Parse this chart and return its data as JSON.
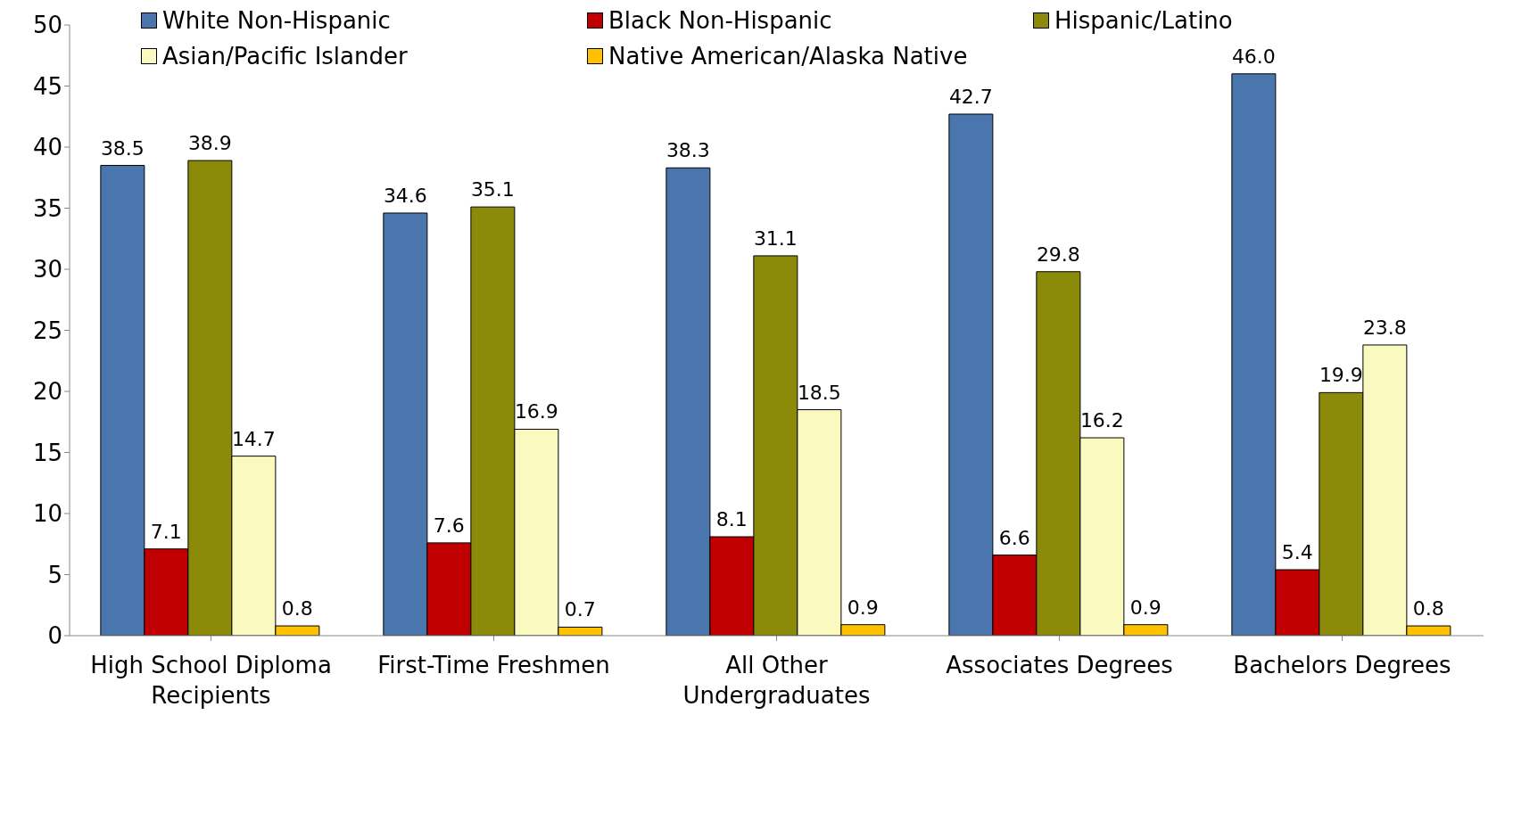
{
  "chart_data": {
    "type": "bar",
    "categories": [
      "High School Diploma Recipients",
      "First-Time Freshmen",
      "All Other Undergraduates",
      "Associates Degrees",
      "Bachelors Degrees"
    ],
    "series": [
      {
        "name": "White Non-Hispanic",
        "color": "#4a76ad",
        "values": [
          38.5,
          34.6,
          38.3,
          42.7,
          46.0
        ],
        "value_labels": [
          "38.5",
          "34.6",
          "38.3",
          "42.7",
          "46.0"
        ]
      },
      {
        "name": "Black Non-Hispanic",
        "color": "#c00000",
        "values": [
          7.1,
          7.6,
          8.1,
          6.6,
          5.4
        ],
        "value_labels": [
          "7.1",
          "7.6",
          "8.1",
          "6.6",
          "5.4"
        ]
      },
      {
        "name": "Hispanic/Latino",
        "color": "#8b8b09",
        "values": [
          38.9,
          35.1,
          31.1,
          29.8,
          19.9
        ],
        "value_labels": [
          "38.9",
          "35.1",
          "31.1",
          "29.8",
          "19.9"
        ]
      },
      {
        "name": "Asian/Pacific Islander",
        "color": "#fafac0",
        "values": [
          14.7,
          16.9,
          18.5,
          16.2,
          23.8
        ],
        "value_labels": [
          "14.7",
          "16.9",
          "18.5",
          "16.2",
          "23.8"
        ]
      },
      {
        "name": "Native American/Alaska Native",
        "color": "#ffc000",
        "values": [
          0.8,
          0.7,
          0.9,
          0.9,
          0.8
        ],
        "value_labels": [
          "0.8",
          "0.7",
          "0.9",
          "0.9",
          "0.8"
        ]
      }
    ],
    "ylim": [
      0,
      50
    ],
    "yticks": [
      0,
      5,
      10,
      15,
      20,
      25,
      30,
      35,
      40,
      45,
      50
    ],
    "legend": "top"
  }
}
